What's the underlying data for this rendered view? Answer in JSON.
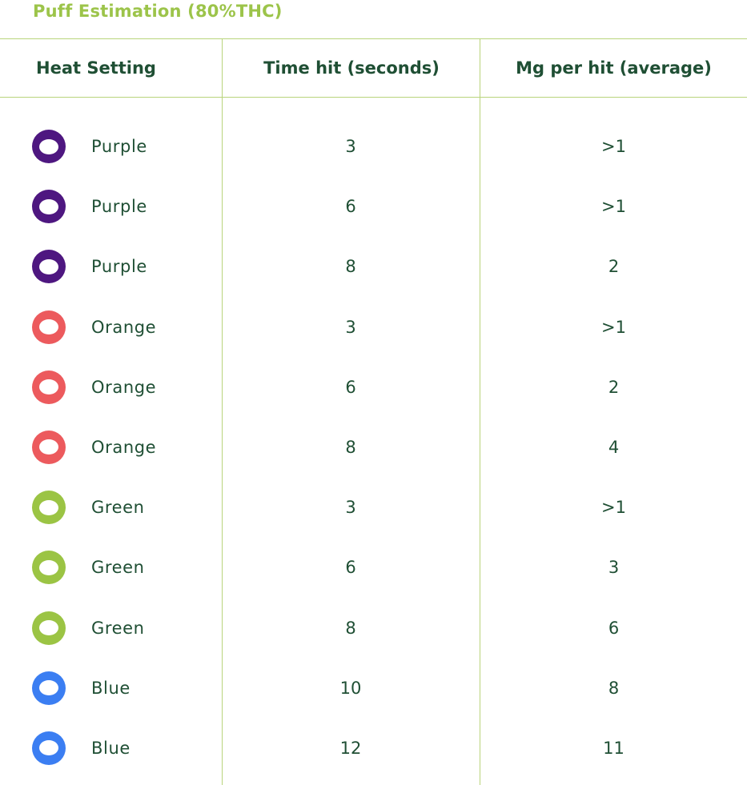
{
  "title": "Puff Estimation (80%THC)",
  "headers": {
    "heat_setting": "Heat Setting",
    "time_hit": "Time hit (seconds)",
    "mg_per_hit": "Mg per hit (average)"
  },
  "colors": {
    "title": "#9cc44a",
    "text": "#1f4f34",
    "rule": "#b9d47c",
    "purple": "#4e1780",
    "orange": "#ec5a5d",
    "green": "#9bc444",
    "blue": "#3b7ef2"
  },
  "rows": [
    {
      "icon": "purple-ring-icon",
      "color": "#4e1780",
      "setting": "Purple",
      "time": "3",
      "mg": ">1"
    },
    {
      "icon": "purple-ring-icon",
      "color": "#4e1780",
      "setting": "Purple",
      "time": "6",
      "mg": ">1"
    },
    {
      "icon": "purple-ring-icon",
      "color": "#4e1780",
      "setting": "Purple",
      "time": "8",
      "mg": "2"
    },
    {
      "icon": "orange-ring-icon",
      "color": "#ec5a5d",
      "setting": "Orange",
      "time": "3",
      "mg": ">1"
    },
    {
      "icon": "orange-ring-icon",
      "color": "#ec5a5d",
      "setting": "Orange",
      "time": "6",
      "mg": "2"
    },
    {
      "icon": "orange-ring-icon",
      "color": "#ec5a5d",
      "setting": "Orange",
      "time": "8",
      "mg": "4"
    },
    {
      "icon": "green-ring-icon",
      "color": "#9bc444",
      "setting": "Green",
      "time": "3",
      "mg": ">1"
    },
    {
      "icon": "green-ring-icon",
      "color": "#9bc444",
      "setting": "Green",
      "time": "6",
      "mg": "3"
    },
    {
      "icon": "green-ring-icon",
      "color": "#9bc444",
      "setting": "Green",
      "time": "8",
      "mg": "6"
    },
    {
      "icon": "blue-ring-icon",
      "color": "#3b7ef2",
      "setting": "Blue",
      "time": "10",
      "mg": "8"
    },
    {
      "icon": "blue-ring-icon",
      "color": "#3b7ef2",
      "setting": "Blue",
      "time": "12",
      "mg": "11"
    }
  ]
}
